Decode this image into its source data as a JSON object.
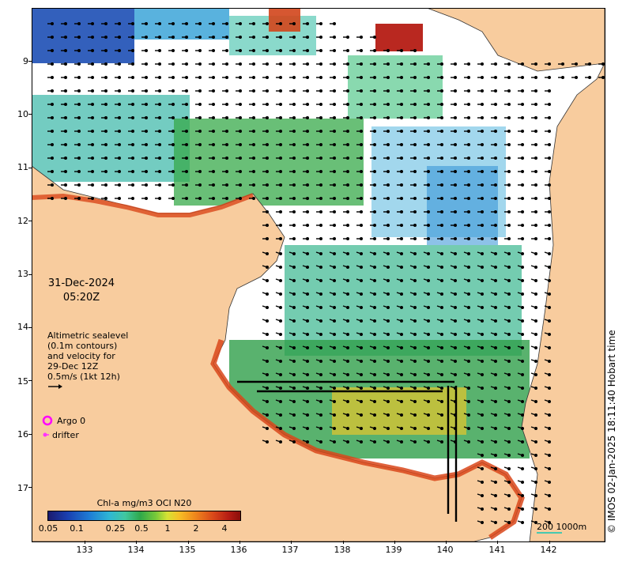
{
  "map": {
    "lat_ticks": [
      "9",
      "10",
      "11",
      "12",
      "13",
      "14",
      "15",
      "16",
      "17"
    ],
    "lon_ticks": [
      "133",
      "134",
      "135",
      "136",
      "137",
      "138",
      "139",
      "140",
      "141",
      "142"
    ]
  },
  "timestamp": {
    "date": "31-Dec-2024",
    "time": "05:20Z"
  },
  "altimetry": {
    "lines": [
      "Altimetric sealevel",
      "(0.1m contours)",
      "and velocity for",
      "29-Dec 12Z"
    ],
    "scale_label": "0.5m/s (1kt 12h)"
  },
  "legend": {
    "argo_label": "Argo 0",
    "drifter_label": "drifter"
  },
  "colorbar": {
    "title": "Chl-a mg/m3 OCI N20",
    "labels": [
      "0.05",
      "0.1",
      "0.25",
      "0.5",
      "1",
      "2",
      "4"
    ]
  },
  "scale": {
    "label": "200  1000m"
  },
  "credit": "© IMOS 02-Jan-2025 18:11:40 Hobart time",
  "colors": {
    "land": "#f8cc9e",
    "argo": "#ff00ff",
    "drifter": "#ff33ff",
    "bathy": "#47c9b0"
  }
}
